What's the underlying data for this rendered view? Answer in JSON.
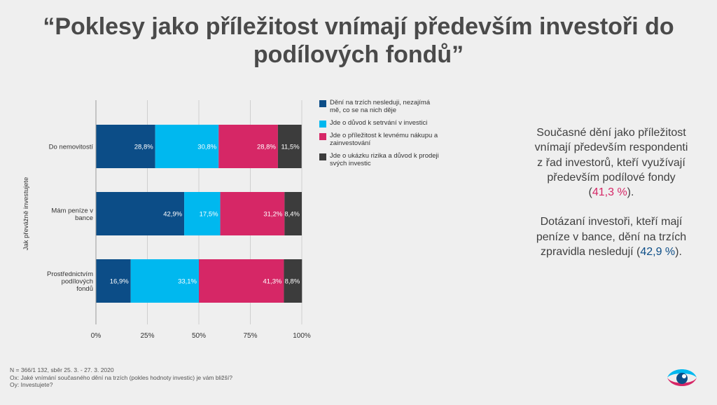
{
  "slide": {
    "title": "“Poklesy jako příležitost vnímají především investoři do podílových fondů”"
  },
  "chart_data": {
    "type": "bar",
    "orientation": "horizontal",
    "stacked": "percent",
    "ylabel": "Jak převážně investujete",
    "categories": [
      "Do nemovitostí",
      "Mám peníze v bance",
      "Prostřednictvím podílových fondů"
    ],
    "series": [
      {
        "name": "Dění na trzích nesleduji, nezajímá mě, co se na nich děje",
        "color": "#0c4d87",
        "values": [
          28.8,
          42.9,
          16.9
        ],
        "labels": [
          "28,8%",
          "42,9%",
          "16,9%"
        ]
      },
      {
        "name": "Jde o důvod k setrvání v investici",
        "color": "#00b8ef",
        "values": [
          30.8,
          17.5,
          33.1
        ],
        "labels": [
          "30,8%",
          "17,5%",
          "33,1%"
        ]
      },
      {
        "name": "Jde o příležitost k levnému nákupu a zainvestování",
        "color": "#d62766",
        "values": [
          28.8,
          31.2,
          41.3
        ],
        "labels": [
          "28,8%",
          "31,2%",
          "41,3%"
        ]
      },
      {
        "name": "Jde o ukázku rizika a důvod k prodeji svých investic",
        "color": "#3c3c3c",
        "values": [
          11.5,
          8.4,
          8.8
        ],
        "labels": [
          "11,5%",
          "8,4%",
          "8,8%"
        ]
      }
    ],
    "x_ticks": [
      "0%",
      "25%",
      "50%",
      "75%",
      "100%"
    ],
    "xlim": [
      0,
      100
    ],
    "grid": true,
    "legend": "right"
  },
  "info": {
    "para1_text": "Současné dění jako příležitost vnímají především respondenti z řad investorů, kteří využívají především podílové fondy (",
    "para1_highlight": "41,3 %",
    "para1_end": ").",
    "para2_text": "Dotázaní investoři, kteří mají peníze v bance, dění na trzích zpravidla nesledují (",
    "para2_highlight": "42,9 %",
    "para2_end": ").",
    "highlight1_color": "#d62766",
    "highlight2_color": "#0c4d87"
  },
  "footnote": {
    "line1": "N = 366/1 132, sběr 25. 3. - 27. 3. 2020",
    "line2": "Ox: Jaké vnímání současného dění na trzích (pokles hodnoty investic) je vám bližší?",
    "line3": "Oy: Investujete?"
  },
  "logo": {
    "icon": "eye-logo-icon"
  }
}
